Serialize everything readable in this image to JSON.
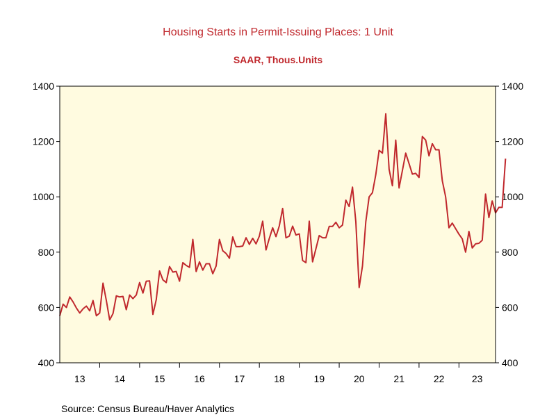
{
  "chart_data": {
    "type": "line",
    "title": "Housing Starts in Permit-Issuing Places: 1 Unit",
    "subtitle": "SAAR, Thous.Units",
    "source": "Source:  Census Bureau/Haver Analytics",
    "xlabel": "",
    "ylabel": "",
    "ylim": [
      400,
      1400
    ],
    "yticks": [
      "400",
      "600",
      "800",
      "1000",
      "1200",
      "1400"
    ],
    "xlim": [
      2013.0,
      2023.9167
    ],
    "year_labels": [
      "13",
      "14",
      "15",
      "16",
      "17",
      "18",
      "19",
      "20",
      "21",
      "22",
      "23"
    ],
    "grid": false,
    "background_color": "#fffbe0",
    "line_color": "#c0282d",
    "title_color": "#c0282d",
    "series": [
      {
        "name": "Housing Starts: 1 Unit",
        "start": "2013-01",
        "frequency": "monthly",
        "values": [
          570,
          612,
          600,
          638,
          620,
          598,
          580,
          595,
          605,
          588,
          625,
          570,
          580,
          688,
          625,
          555,
          578,
          642,
          638,
          640,
          592,
          645,
          632,
          645,
          690,
          652,
          695,
          696,
          575,
          628,
          732,
          700,
          690,
          748,
          728,
          730,
          695,
          762,
          752,
          745,
          846,
          730,
          765,
          735,
          758,
          758,
          722,
          750,
          846,
          805,
          795,
          778,
          855,
          820,
          820,
          822,
          852,
          828,
          850,
          830,
          858,
          912,
          808,
          850,
          888,
          856,
          895,
          958,
          852,
          858,
          894,
          862,
          866,
          770,
          762,
          912,
          765,
          812,
          860,
          852,
          852,
          893,
          893,
          908,
          888,
          898,
          988,
          965,
          1035,
          910,
          672,
          750,
          910,
          1000,
          1015,
          1080,
          1168,
          1158,
          1300,
          1100,
          1040,
          1205,
          1032,
          1095,
          1158,
          1120,
          1082,
          1085,
          1070,
          1218,
          1205,
          1148,
          1192,
          1170,
          1170,
          1058,
          1000,
          888,
          905,
          885,
          865,
          848,
          800,
          875,
          815,
          830,
          832,
          843,
          1010,
          925,
          985,
          942,
          962,
          962,
          1138
        ]
      }
    ]
  }
}
